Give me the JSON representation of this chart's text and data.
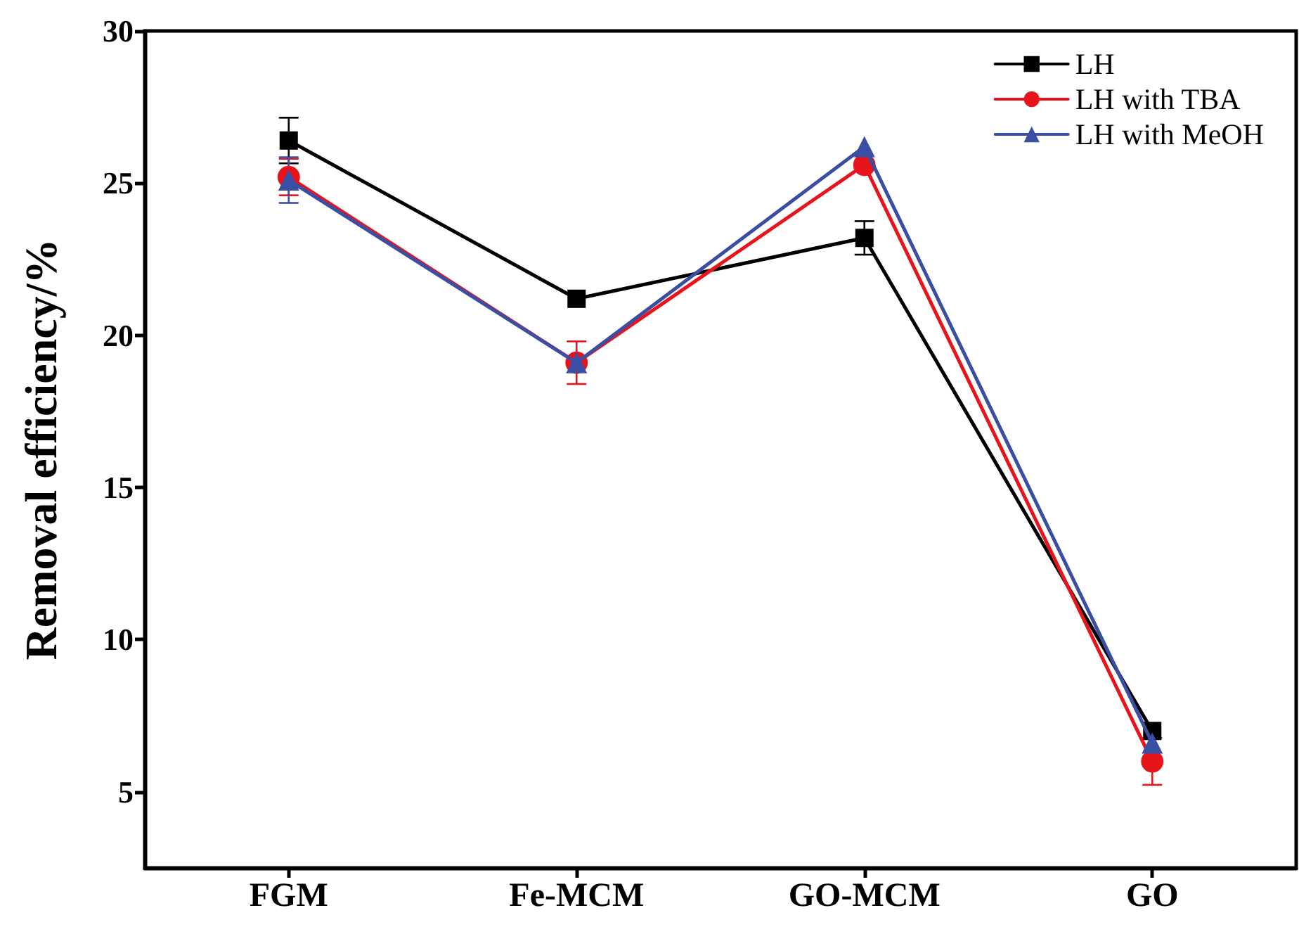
{
  "chart_data": {
    "type": "line",
    "ylabel": "Removal efficiency/%",
    "categories": [
      "FGM",
      "Fe-MCM",
      "GO-MCM",
      "GO"
    ],
    "series": [
      {
        "name": "LH",
        "color": "#000000",
        "marker": "square",
        "values": [
          26.4,
          21.2,
          23.2,
          7.0
        ],
        "errors": [
          0.75,
          null,
          0.55,
          null
        ]
      },
      {
        "name": "LH with TBA",
        "color": "#e8141c",
        "marker": "circle",
        "values": [
          25.2,
          19.1,
          25.6,
          6.0
        ],
        "errors": [
          0.6,
          0.7,
          null,
          0.77
        ]
      },
      {
        "name": "LH with MeOH",
        "color": "#3a4fa3",
        "marker": "triangle",
        "values": [
          25.1,
          19.1,
          26.2,
          6.6
        ],
        "errors": [
          0.75,
          null,
          null,
          null
        ]
      }
    ],
    "ylim": [
      2.5,
      30
    ],
    "yticks": [
      5,
      10,
      15,
      20,
      25,
      30
    ],
    "grid": false,
    "legend": "top right",
    "line_style": "solid"
  }
}
